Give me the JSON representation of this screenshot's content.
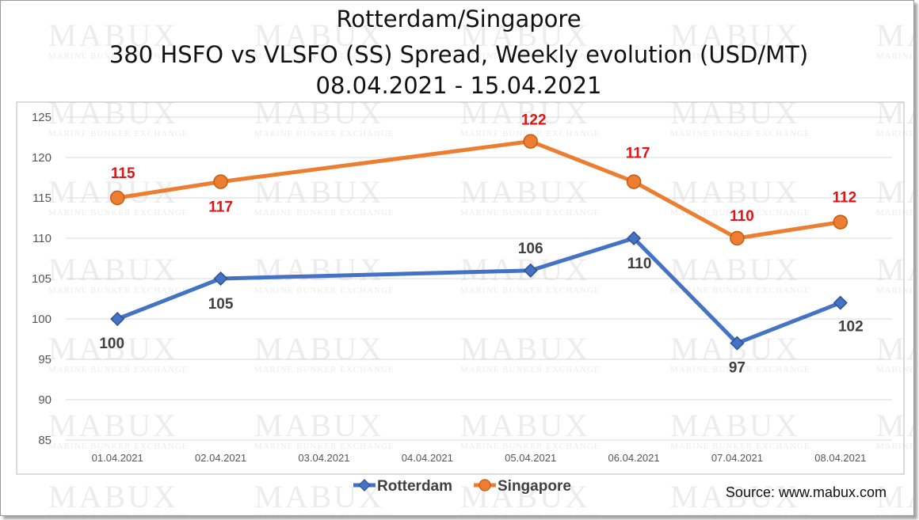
{
  "watermark": {
    "brand": "MABUX",
    "tagline": "MARINE BUNKER EXCHANGE"
  },
  "source": "Source: www.mabux.com",
  "chart_data": {
    "type": "line",
    "title": [
      "Rotterdam/Singapore",
      "380 HSFO vs VLSFO (SS) Spread, Weekly evolution (USD/MT)",
      "08.04.2021 - 15.04.2021"
    ],
    "xlabel": "",
    "ylabel": "",
    "categories": [
      "01.04.2021",
      "02.04.2021",
      "03.04.2021",
      "04.04.2021",
      "05.04.2021",
      "06.04.2021",
      "07.04.2021",
      "08.04.2021"
    ],
    "ylim": [
      85,
      125
    ],
    "yticks": [
      85,
      90,
      95,
      100,
      105,
      110,
      115,
      120,
      125
    ],
    "grid": true,
    "legend_position": "bottom",
    "series": [
      {
        "name": "Rotterdam",
        "color": "#4472c4",
        "marker": "diamond",
        "x": [
          "01.04.2021",
          "02.04.2021",
          "05.04.2021",
          "06.04.2021",
          "07.04.2021",
          "08.04.2021"
        ],
        "values": [
          100,
          105,
          106,
          110,
          97,
          102
        ],
        "label_color": "#404040"
      },
      {
        "name": "Singapore",
        "color": "#ed7d31",
        "marker": "circle",
        "x": [
          "01.04.2021",
          "02.04.2021",
          "05.04.2021",
          "06.04.2021",
          "07.04.2021",
          "08.04.2021"
        ],
        "values": [
          115,
          117,
          122,
          117,
          110,
          112
        ],
        "label_color": "#e01414"
      }
    ]
  }
}
